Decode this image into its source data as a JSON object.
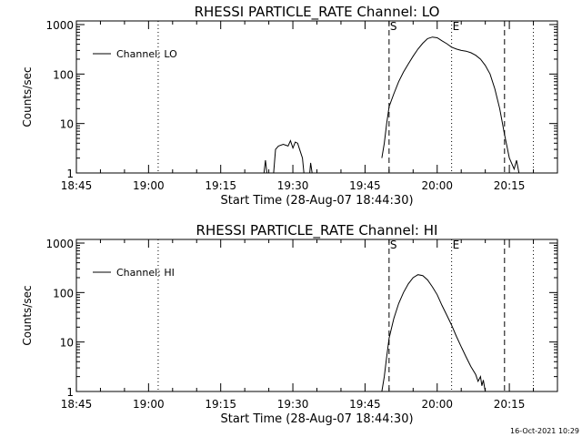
{
  "timestamp": "16-Oct-2021 10:29",
  "chart_data": [
    {
      "type": "line",
      "title": "RHESSI PARTICLE_RATE Channel: LO",
      "xlabel": "Start Time (28-Aug-07 18:44:30)",
      "ylabel": "Counts/sec",
      "yscale": "log",
      "ylim": [
        1,
        1000
      ],
      "xlim": [
        "18:45",
        "20:25"
      ],
      "x_ticks": [
        "18:45",
        "19:00",
        "19:15",
        "19:30",
        "19:45",
        "20:00",
        "20:15"
      ],
      "y_ticks": [
        "1",
        "10",
        "100",
        "1000"
      ],
      "legend": {
        "entry": "Channel: LO",
        "placement": "top-left"
      },
      "markers": [
        {
          "style": "dotted",
          "time": "19:02"
        },
        {
          "style": "dashed",
          "time": "19:50",
          "label": "S"
        },
        {
          "style": "dotted",
          "time": "20:03",
          "label": "E"
        },
        {
          "style": "dashed",
          "time": "20:14"
        },
        {
          "style": "dotted",
          "time": "20:20"
        }
      ],
      "series": [
        {
          "segments": [
            [
              [
                "19:24",
                1.0
              ],
              [
                "19:24.3",
                1.8
              ],
              [
                "19:24.6",
                1.0
              ]
            ],
            [
              [
                "19:26",
                1.0
              ],
              [
                "19:26.4",
                3.0
              ],
              [
                "19:27",
                3.5
              ],
              [
                "19:28",
                3.8
              ],
              [
                "19:29",
                3.5
              ],
              [
                "19:29.5",
                4.5
              ],
              [
                "19:30",
                3.2
              ],
              [
                "19:30.5",
                4.2
              ],
              [
                "19:31",
                4.0
              ],
              [
                "19:31.5",
                2.8
              ],
              [
                "19:32",
                2.0
              ],
              [
                "19:32.3",
                1.0
              ]
            ],
            [
              [
                "19:33.5",
                1.0
              ],
              [
                "19:33.7",
                1.6
              ],
              [
                "19:34",
                1.0
              ]
            ],
            [
              [
                "19:48.5",
                2.0
              ],
              [
                "19:49",
                4.0
              ],
              [
                "19:49.5",
                10
              ],
              [
                "19:50",
                22
              ],
              [
                "19:51",
                40
              ],
              [
                "19:52",
                70
              ],
              [
                "19:53",
                110
              ],
              [
                "19:54",
                160
              ],
              [
                "19:55",
                230
              ],
              [
                "19:56",
                320
              ],
              [
                "19:57",
                420
              ],
              [
                "19:58",
                520
              ],
              [
                "19:59",
                560
              ],
              [
                "20:00",
                540
              ],
              [
                "20:01",
                470
              ],
              [
                "20:02",
                410
              ],
              [
                "20:03",
                350
              ],
              [
                "20:04",
                320
              ],
              [
                "20:05",
                300
              ],
              [
                "20:06",
                290
              ],
              [
                "20:07",
                270
              ],
              [
                "20:08",
                240
              ],
              [
                "20:09",
                200
              ],
              [
                "20:10",
                150
              ],
              [
                "20:11",
                100
              ],
              [
                "20:12",
                50
              ],
              [
                "20:13",
                20
              ],
              [
                "20:14",
                6
              ],
              [
                "20:15",
                2.0
              ],
              [
                "20:16",
                1.2
              ],
              [
                "20:16.5",
                1.8
              ],
              [
                "20:17",
                1.0
              ]
            ]
          ]
        }
      ]
    },
    {
      "type": "line",
      "title": "RHESSI PARTICLE_RATE Channel: HI",
      "xlabel": "Start Time (28-Aug-07 18:44:30)",
      "ylabel": "Counts/sec",
      "yscale": "log",
      "ylim": [
        1,
        1000
      ],
      "xlim": [
        "18:45",
        "20:25"
      ],
      "x_ticks": [
        "18:45",
        "19:00",
        "19:15",
        "19:30",
        "19:45",
        "20:00",
        "20:15"
      ],
      "y_ticks": [
        "1",
        "10",
        "100",
        "1000"
      ],
      "legend": {
        "entry": "Channel: HI",
        "placement": "top-left"
      },
      "markers": [
        {
          "style": "dotted",
          "time": "19:02"
        },
        {
          "style": "dashed",
          "time": "19:50",
          "label": "S"
        },
        {
          "style": "dotted",
          "time": "20:03",
          "label": "E"
        },
        {
          "style": "dashed",
          "time": "20:14"
        },
        {
          "style": "dotted",
          "time": "20:20"
        }
      ],
      "series": [
        {
          "segments": [
            [
              [
                "19:48.5",
                1.0
              ],
              [
                "19:49",
                2.0
              ],
              [
                "19:49.5",
                5.0
              ],
              [
                "19:50",
                12
              ],
              [
                "19:51",
                30
              ],
              [
                "19:52",
                60
              ],
              [
                "19:53",
                100
              ],
              [
                "19:54",
                150
              ],
              [
                "19:55",
                200
              ],
              [
                "19:56",
                230
              ],
              [
                "19:57",
                220
              ],
              [
                "19:58",
                180
              ],
              [
                "19:59",
                130
              ],
              [
                "20:00",
                90
              ],
              [
                "20:01",
                55
              ],
              [
                "20:02",
                35
              ],
              [
                "20:03",
                22
              ],
              [
                "20:04",
                13
              ],
              [
                "20:05",
                8
              ],
              [
                "20:06",
                5
              ],
              [
                "20:07",
                3.2
              ],
              [
                "20:08",
                2.2
              ],
              [
                "20:08.5",
                1.6
              ],
              [
                "20:09",
                2.0
              ],
              [
                "20:09.3",
                1.3
              ],
              [
                "20:09.6",
                1.7
              ],
              [
                "20:10",
                1.0
              ]
            ]
          ]
        }
      ]
    }
  ]
}
